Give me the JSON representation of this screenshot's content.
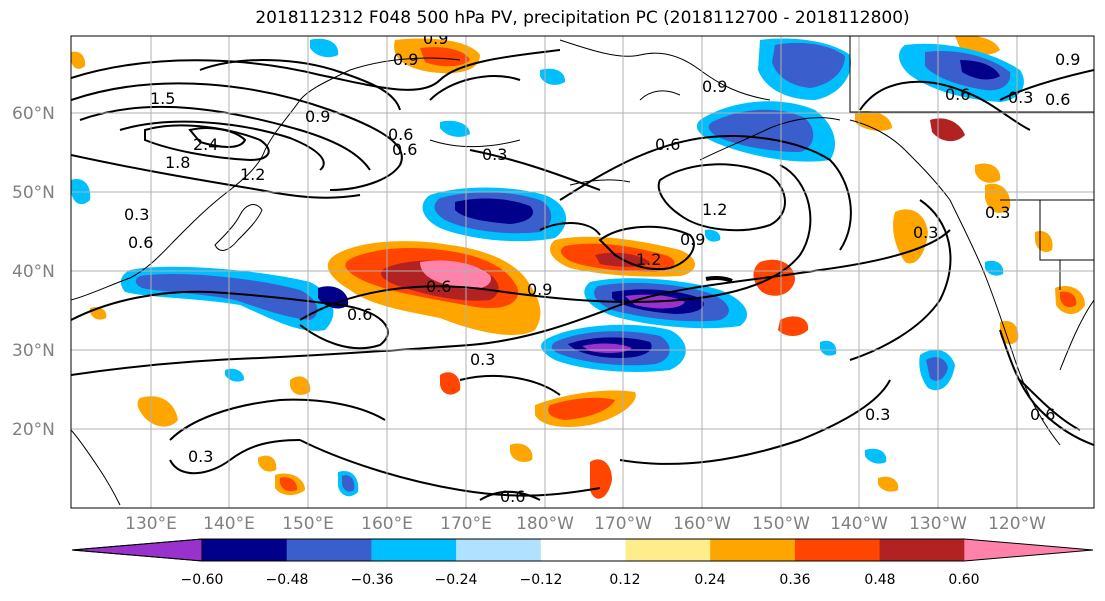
{
  "title": "2018112312 F048 500 hPa PV, precipitation PC (2018112700 - 2018112800)",
  "lat_labels": [
    "60°N",
    "50°N",
    "40°N",
    "30°N",
    "20°N"
  ],
  "lon_labels": [
    "130°E",
    "140°E",
    "150°E",
    "160°E",
    "170°E",
    "180°W",
    "170°W",
    "160°W",
    "150°W",
    "140°W",
    "130°W",
    "120°W"
  ],
  "colorbar": {
    "colors": [
      "#9932cc",
      "#00008b",
      "#3a5fcd",
      "#00bfff",
      "#b0e2ff",
      "#ffffff",
      "#ffec8b",
      "#ffa500",
      "#ff4500",
      "#b22222",
      "#ff82ab"
    ],
    "tick_labels": [
      "−0.60",
      "−0.48",
      "−0.36",
      "−0.24",
      "−0.12",
      "0.12",
      "0.24",
      "0.36",
      "0.48",
      "0.60"
    ]
  },
  "contour_labels": [
    "0.9",
    "0.9",
    "1.5",
    "2.4",
    "1.8",
    "1.2",
    "0.9",
    "0.6",
    "0.3",
    "0.3",
    "0.6",
    "0.6",
    "0.9",
    "1.2",
    "0.9",
    "1.2",
    "0.6",
    "0.9",
    "0.6",
    "0.3",
    "0.3",
    "0.3",
    "0.6",
    "0.3",
    "0.6",
    "0.3",
    "0.9",
    "0.6",
    "0.3",
    "0.6",
    "0.6"
  ]
}
